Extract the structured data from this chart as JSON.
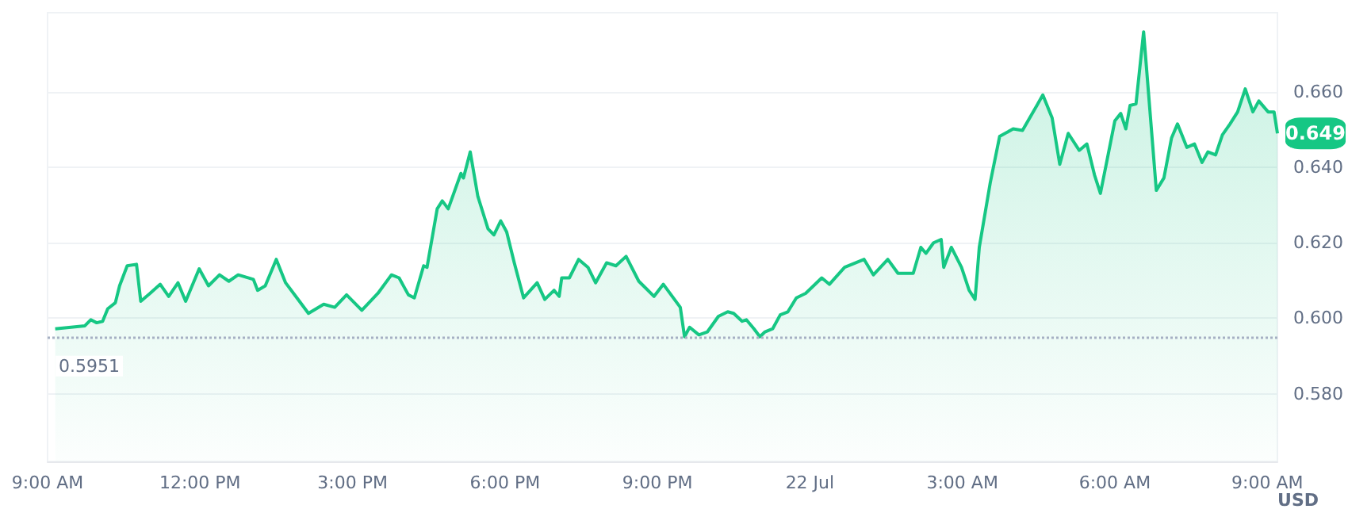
{
  "chart_data": {
    "type": "area",
    "ylabel": "USD",
    "color": "#16c784",
    "x": [
      "--07-21T09:09",
      "--07-21T09:44",
      "--07-21T09:51",
      "--07-21T09:58",
      "--07-21T10:05",
      "--07-21T10:11",
      "--07-21T10:20",
      "--07-21T10:25",
      "--07-21T10:34",
      "--07-21T10:45",
      "--07-21T10:50",
      "--07-21T11:01",
      "--07-21T11:13",
      "--07-21T11:23",
      "--07-21T11:34",
      "--07-21T11:43",
      "--07-21T11:59",
      "--07-21T12:10",
      "--07-21T12:23",
      "--07-21T12:34",
      "--07-21T12:45",
      "--07-21T13:03",
      "--07-21T13:08",
      "--07-21T13:17",
      "--07-21T13:30",
      "--07-21T13:41",
      "--07-21T13:53",
      "--07-21T14:08",
      "--07-21T14:26",
      "--07-21T14:39",
      "--07-21T14:53",
      "--07-21T15:11",
      "--07-21T15:30",
      "--07-21T15:46",
      "--07-21T15:55",
      "--07-21T16:06",
      "--07-21T16:13",
      "--07-21T16:24",
      "--07-21T16:28",
      "--07-21T16:40",
      "--07-21T16:46",
      "--07-21T16:53",
      "--07-21T17:08",
      "--07-21T17:11",
      "--07-21T17:19",
      "--07-21T17:28",
      "--07-21T17:40",
      "--07-21T17:47",
      "--07-21T17:55",
      "--07-21T18:02",
      "--07-21T18:11",
      "--07-21T18:22",
      "--07-21T18:38",
      "--07-21T18:47",
      "--07-21T18:58",
      "--07-21T19:04",
      "--07-21T19:07",
      "--07-21T19:16",
      "--07-21T19:27",
      "--07-21T19:38",
      "--07-21T19:47",
      "--07-21T20:00",
      "--07-21T20:11",
      "--07-21T20:23",
      "--07-21T20:38",
      "--07-21T20:47",
      "--07-21T20:56",
      "--07-21T21:07",
      "--07-21T21:27",
      "--07-21T21:32",
      "--07-21T21:38",
      "--07-21T21:49",
      "--07-21T21:59",
      "--07-21T22:12",
      "--07-21T22:23",
      "--07-21T22:30",
      "--07-21T22:40",
      "--07-21T22:45",
      "--07-21T22:54",
      "--07-21T23:01",
      "--07-21T23:07",
      "--07-21T23:16",
      "--07-21T23:25",
      "--07-21T23:34",
      "--07-21T23:44",
      "--07-21T23:55",
      "--07-22T00:14",
      "--07-22T00:23",
      "--07-22T00:41",
      "--07-22T01:04",
      "--07-22T01:15",
      "--07-22T01:32",
      "--07-22T01:44",
      "--07-22T02:02",
      "--07-22T02:11",
      "--07-22T02:17",
      "--07-22T02:26",
      "--07-22T02:35",
      "--07-22T02:38",
      "--07-22T02:47",
      "--07-22T02:59",
      "--07-22T03:08",
      "--07-22T03:15",
      "--07-22T03:20",
      "--07-22T03:33",
      "--07-22T03:44",
      "--07-22T04:00",
      "--07-22T04:11",
      "--07-22T04:28",
      "--07-22T04:35",
      "--07-22T04:46",
      "--07-22T04:55",
      "--07-22T05:05",
      "--07-22T05:18",
      "--07-22T05:27",
      "--07-22T05:36",
      "--07-22T05:43",
      "--07-22T05:51",
      "--07-22T06:00",
      "--07-22T06:07",
      "--07-22T06:13",
      "--07-22T06:18",
      "--07-22T06:25",
      "--07-22T06:34",
      "--07-22T06:49",
      "--07-22T06:58",
      "--07-22T07:07",
      "--07-22T07:14",
      "--07-22T07:25",
      "--07-22T07:34",
      "--07-22T07:43",
      "--07-22T07:50",
      "--07-22T07:59",
      "--07-22T08:07",
      "--07-22T08:16",
      "--07-22T08:25",
      "--07-22T08:34",
      "--07-22T08:43",
      "--07-22T08:50",
      "--07-22T09:01",
      "--07-22T09:08",
      "--07-22T09:12"
    ],
    "values": [
      0.5972,
      0.598,
      0.5996,
      0.5988,
      0.5992,
      0.6025,
      0.6041,
      0.6086,
      0.6139,
      0.6143,
      0.6045,
      0.6066,
      0.609,
      0.6058,
      0.6094,
      0.6045,
      0.6131,
      0.6086,
      0.6115,
      0.6098,
      0.6115,
      0.6103,
      0.6074,
      0.6086,
      0.6156,
      0.6094,
      0.6058,
      0.6013,
      0.6037,
      0.6029,
      0.6062,
      0.6021,
      0.6066,
      0.6115,
      0.6107,
      0.6062,
      0.6054,
      0.6139,
      0.6135,
      0.629,
      0.6311,
      0.629,
      0.6384,
      0.6372,
      0.6441,
      0.6323,
      0.6237,
      0.6221,
      0.6258,
      0.6229,
      0.6147,
      0.6054,
      0.6094,
      0.605,
      0.6074,
      0.6058,
      0.6107,
      0.6107,
      0.6156,
      0.6135,
      0.6094,
      0.6147,
      0.6139,
      0.6164,
      0.6098,
      0.6078,
      0.6058,
      0.609,
      0.6029,
      0.5951,
      0.5976,
      0.5956,
      0.5964,
      0.6005,
      0.6017,
      0.6013,
      0.5992,
      0.5996,
      0.5972,
      0.5951,
      0.5964,
      0.5972,
      0.6009,
      0.6017,
      0.6054,
      0.6066,
      0.6107,
      0.609,
      0.6135,
      0.6156,
      0.6115,
      0.6156,
      0.6119,
      0.6119,
      0.6188,
      0.6172,
      0.62,
      0.6209,
      0.6135,
      0.6188,
      0.6135,
      0.6074,
      0.605,
      0.6188,
      0.636,
      0.6482,
      0.6502,
      0.6498,
      0.6564,
      0.6592,
      0.6531,
      0.6408,
      0.649,
      0.6445,
      0.6462,
      0.638,
      0.6331,
      0.6421,
      0.6523,
      0.6543,
      0.6502,
      0.6564,
      0.6568,
      0.6759,
      0.6339,
      0.6372,
      0.6478,
      0.6515,
      0.6453,
      0.6462,
      0.6413,
      0.6441,
      0.6433,
      0.6486,
      0.6515,
      0.6547,
      0.6608,
      0.6547,
      0.6576,
      0.6547,
      0.6547,
      0.649
    ],
    "xlim": [
      "--07-21T09:00",
      "--07-22T09:12"
    ],
    "xticks": [
      {
        "value": "--07-21T09:00",
        "label": "9:00 AM"
      },
      {
        "value": "--07-21T12:00",
        "label": "12:00 PM"
      },
      {
        "value": "--07-21T15:00",
        "label": "3:00 PM"
      },
      {
        "value": "--07-21T18:00",
        "label": "6:00 PM"
      },
      {
        "value": "--07-21T21:00",
        "label": "9:00 PM"
      },
      {
        "value": "--07-22T00:00",
        "label": "22 Jul"
      },
      {
        "value": "--07-22T03:00",
        "label": "3:00 AM"
      },
      {
        "value": "--07-22T06:00",
        "label": "6:00 AM"
      },
      {
        "value": "--07-22T09:00",
        "label": "9:00 AM"
      }
    ],
    "ylim": [
      0.562,
      0.681
    ],
    "yticks": [
      {
        "value": 0.58,
        "label": "0.580"
      },
      {
        "value": 0.6,
        "label": "0.600"
      },
      {
        "value": 0.62,
        "label": "0.620"
      },
      {
        "value": 0.64,
        "label": "0.640"
      },
      {
        "value": 0.66,
        "label": "0.660"
      }
    ],
    "ref_lines": [
      {
        "axis": "y",
        "value": 0.5951,
        "label": "0.5951",
        "line_style": "dotted",
        "color": "#a6b0c3"
      }
    ],
    "annotations": [
      {
        "text": "0.649",
        "x": "--07-22T09:12",
        "y": 0.649
      }
    ],
    "grid": "y",
    "marker": "none",
    "line_style": "solid"
  }
}
